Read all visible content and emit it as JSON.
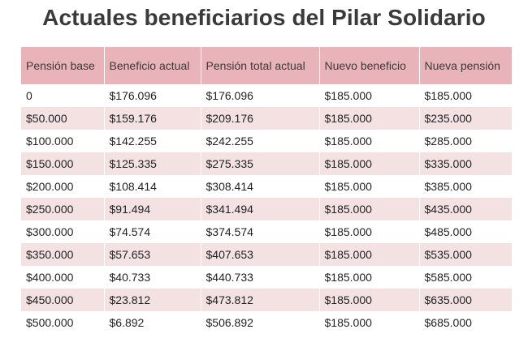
{
  "chart_data": {
    "type": "table",
    "title": "Actuales beneficiarios del Pilar Solidario",
    "columns": [
      "Pensión base",
      "Beneficio actual",
      "Pensión total actual",
      "Nuevo beneficio",
      "Nueva pensión"
    ],
    "rows": [
      [
        "0",
        "$176.096",
        "$176.096",
        "$185.000",
        "$185.000"
      ],
      [
        "$50.000",
        "$159.176",
        "$209.176",
        "$185.000",
        "$235.000"
      ],
      [
        "$100.000",
        "$142.255",
        "$242.255",
        "$185.000",
        "$285.000"
      ],
      [
        "$150.000",
        "$125.335",
        "$275.335",
        "$185.000",
        "$335.000"
      ],
      [
        "$200.000",
        "$108.414",
        "$308.414",
        "$185.000",
        "$385.000"
      ],
      [
        "$250.000",
        "$91.494",
        "$341.494",
        "$185.000",
        "$435.000"
      ],
      [
        "$300.000",
        "$74.574",
        "$374.574",
        "$185.000",
        "$485.000"
      ],
      [
        "$350.000",
        "$57.653",
        "$407.653",
        "$185.000",
        "$535.000"
      ],
      [
        "$400.000",
        "$40.733",
        "$440.733",
        "$185.000",
        "$585.000"
      ],
      [
        "$450.000",
        "$23.812",
        "$473.812",
        "$185.000",
        "$635.000"
      ],
      [
        "$500.000",
        "$6.892",
        "$506.892",
        "$185.000",
        "$685.000"
      ]
    ]
  },
  "colors": {
    "header_bg": "#e8b4b9",
    "stripe_bg": "#f4e2e3",
    "title_text": "#3a3a3a"
  }
}
